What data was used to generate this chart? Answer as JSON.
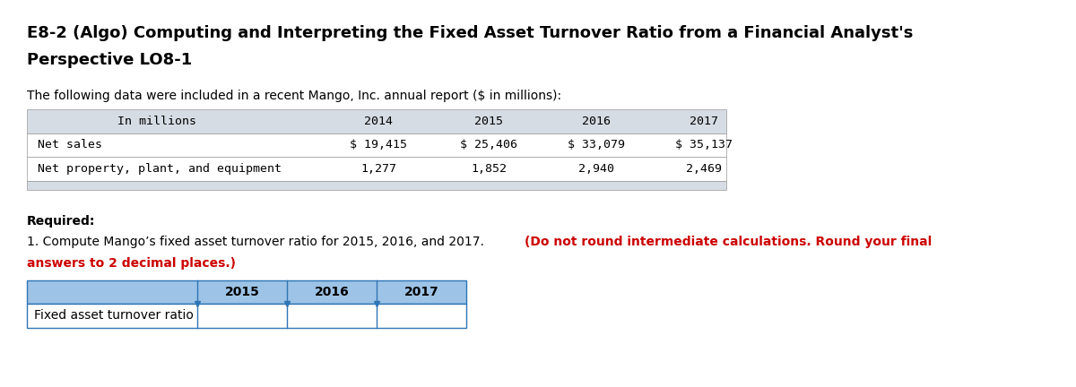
{
  "title_line1": "E8-2 (Algo) Computing and Interpreting the Fixed Asset Turnover Ratio from a Financial Analyst's",
  "title_line2": "Perspective LO8-1",
  "intro_text": "The following data were included in a recent Mango, Inc. annual report ($ in millions):",
  "table1_header": [
    "In millions",
    "2014",
    "2015",
    "2016",
    "2017"
  ],
  "table1_row1_label": "Net sales",
  "table1_row1_values": [
    "$ 19,415",
    "$ 25,406",
    "$ 33,079",
    "$ 35,137"
  ],
  "table1_row2_label": "Net property, plant, and equipment",
  "table1_row2_values": [
    "1,277",
    "1,852",
    "2,940",
    "2,469"
  ],
  "required_label": "Required:",
  "instruction_normal": "1. Compute Mango’s fixed asset turnover ratio for 2015, 2016, and 2017. ",
  "instruction_bold_red": "(Do not round intermediate calculations. Round your final",
  "instruction_bold_red2": "answers to 2 decimal places.)",
  "table2_header": [
    "",
    "2015",
    "2016",
    "2017"
  ],
  "table2_row_label": "Fixed asset turnover ratio",
  "bg_color": "#ffffff",
  "table1_header_bg": "#d6dce4",
  "table1_row_bg": "#ffffff",
  "table1_footer_bg": "#d6dce4",
  "table2_header_bg": "#9dc3e6",
  "table2_row_bg": "#ffffff",
  "table2_border_color": "#2e75b6",
  "title_fontsize": 13,
  "body_fontsize": 10,
  "mono_fontsize": 9.5,
  "small_fontsize": 9
}
